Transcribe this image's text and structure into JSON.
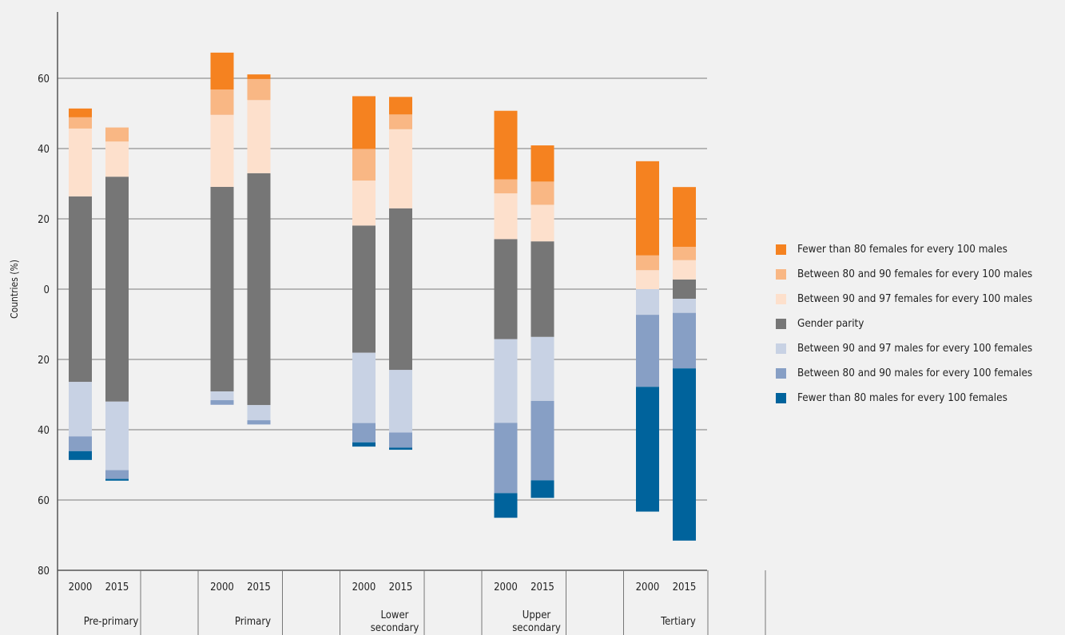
{
  "chart_data": {
    "type": "bar",
    "stacked": true,
    "diverging": true,
    "ylabel": "Countries (%)",
    "ylim": [
      -80,
      80
    ],
    "yticks": [
      {
        "v": 60,
        "label": "60"
      },
      {
        "v": 40,
        "label": "40"
      },
      {
        "v": 20,
        "label": "20"
      },
      {
        "v": 0,
        "label": "0"
      },
      {
        "v": -20,
        "label": "20"
      },
      {
        "v": -40,
        "label": "40"
      },
      {
        "v": -60,
        "label": "60"
      },
      {
        "v": -80,
        "label": "80"
      }
    ],
    "grid": true,
    "legend_position": "right",
    "groups": [
      {
        "label": "Pre-primary",
        "years": [
          "2000",
          "2015"
        ]
      },
      {
        "label": "Primary",
        "years": [
          "2000",
          "2015"
        ]
      },
      {
        "label": "Lower secondary",
        "years": [
          "2000",
          "2015"
        ]
      },
      {
        "label": "Upper secondary",
        "years": [
          "2000",
          "2015"
        ]
      },
      {
        "label": "Tertiary",
        "years": [
          "2000",
          "2015"
        ]
      }
    ],
    "series": [
      {
        "name": "Fewer than 80 females for every 100 males",
        "color": "#f58220",
        "side": "up",
        "values": [
          [
            2.5,
            0
          ],
          [
            10.5,
            1.3
          ],
          [
            15,
            5
          ],
          [
            19.5,
            10.3
          ],
          [
            26.8,
            17
          ]
        ]
      },
      {
        "name": "Between 80 and 90 females for every 100 males",
        "color": "#f9b784",
        "side": "up",
        "values": [
          [
            3.2,
            4
          ],
          [
            7.2,
            6
          ],
          [
            9,
            4.2
          ],
          [
            4,
            6.6
          ],
          [
            4.2,
            3.8
          ]
        ]
      },
      {
        "name": "Between 90 and 97 females for every 100 males",
        "color": "#fde0cc",
        "side": "up",
        "values": [
          [
            19.3,
            10
          ],
          [
            20.5,
            20.8
          ],
          [
            12.8,
            22.5
          ],
          [
            13,
            10.4
          ],
          [
            5.4,
            5.5
          ]
        ]
      },
      {
        "name": "Gender parity",
        "color": "#767676",
        "side": "both",
        "values": [
          [
            52.8,
            64
          ],
          [
            58.2,
            66
          ],
          [
            36.2,
            46
          ],
          [
            28.5,
            27.2
          ],
          [
            0,
            5.5
          ]
        ]
      },
      {
        "name": "Between 90 and 97 males for every 100 females",
        "color": "#c8d2e4",
        "side": "down",
        "values": [
          [
            15.5,
            19.5
          ],
          [
            2.5,
            4.3
          ],
          [
            20,
            17.8
          ],
          [
            23.8,
            18.2
          ],
          [
            7.3,
            4
          ]
        ]
      },
      {
        "name": "Between 80 and 90 males for every 100 females",
        "color": "#879fc5",
        "side": "down",
        "values": [
          [
            4.2,
            2.5
          ],
          [
            1.3,
            1.2
          ],
          [
            5.5,
            4.3
          ],
          [
            20,
            22.6
          ],
          [
            20.5,
            15.8
          ]
        ]
      },
      {
        "name": "Fewer than 80 males for every 100 females",
        "color": "#00639c",
        "side": "down",
        "values": [
          [
            2.5,
            0.5
          ],
          [
            0,
            0
          ],
          [
            1.2,
            0.6
          ],
          [
            7,
            5
          ],
          [
            35.5,
            49
          ]
        ]
      }
    ]
  }
}
